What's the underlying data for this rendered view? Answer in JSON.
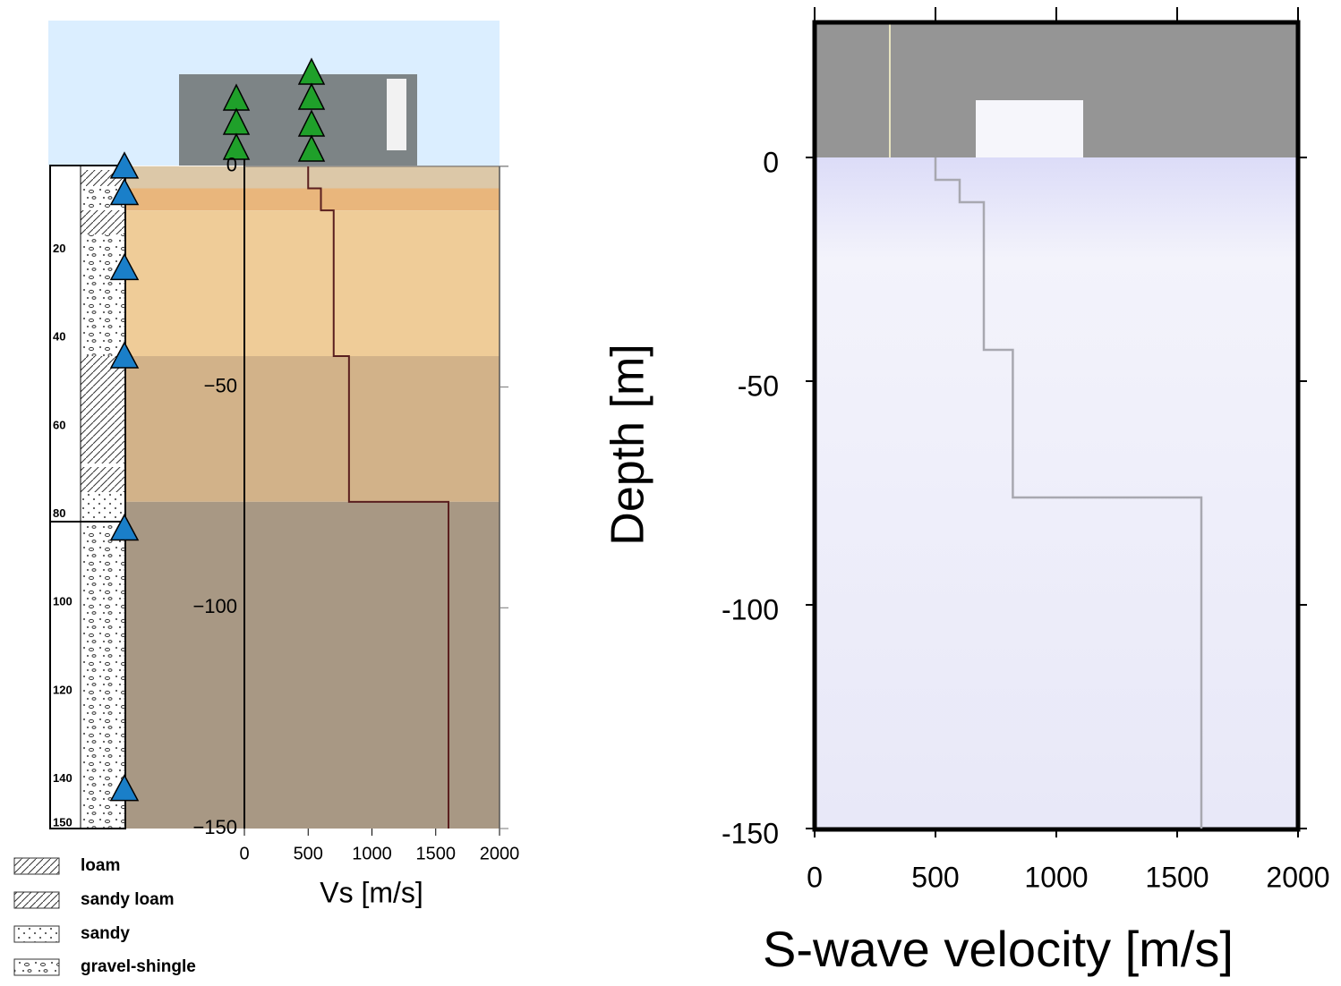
{
  "chart_data": [
    {
      "type": "line",
      "xlabel": "Vs [m/s]",
      "x": [
        500,
        500,
        600,
        600,
        700,
        700,
        820,
        820,
        1600,
        1600
      ],
      "y": [
        0,
        -5,
        -5,
        -10,
        -10,
        -43,
        -43,
        -76,
        -76,
        -150
      ],
      "color": "#5a1f1f",
      "xlim": [
        0,
        2000
      ],
      "xticks": [
        0,
        500,
        1000,
        1500,
        2000
      ],
      "ylim": [
        -150,
        33
      ],
      "yticks": [
        {
          "value": 0,
          "label": "0"
        },
        {
          "value": -50,
          "label": "−50"
        },
        {
          "value": -100,
          "label": "−100"
        },
        {
          "value": -150,
          "label": "−150"
        }
      ],
      "layer_bottoms": [
        -5,
        -10,
        -43,
        -76,
        -150
      ],
      "layer_colors": [
        "#dcc8a8",
        "#e9b67c",
        "#efcc98",
        "#d2b289",
        "#a89884"
      ],
      "borehole_depth_labels": [
        20,
        40,
        60,
        80,
        100,
        120,
        140,
        150
      ],
      "borehole_sensors": [
        0,
        -6,
        -23,
        -43,
        -82,
        -141
      ],
      "lithology_legend": [
        "loam",
        "sandy loam",
        "sandy",
        "gravel-shingle"
      ]
    },
    {
      "type": "line",
      "xlabel": "S-wave velocity [m/s]",
      "ylabel": "Depth [m]",
      "x": [
        500,
        500,
        600,
        600,
        700,
        700,
        820,
        820,
        1600,
        1600
      ],
      "y": [
        0,
        -5,
        -5,
        -10,
        -10,
        -43,
        -43,
        -76,
        -76,
        -150
      ],
      "color": "#a8a8b0",
      "xlim": [
        0,
        2000
      ],
      "xticks": [
        0,
        500,
        1000,
        1500,
        2000
      ],
      "ylim": [
        -150,
        30
      ],
      "yticks": [
        -150,
        -100,
        -50,
        0
      ]
    }
  ]
}
